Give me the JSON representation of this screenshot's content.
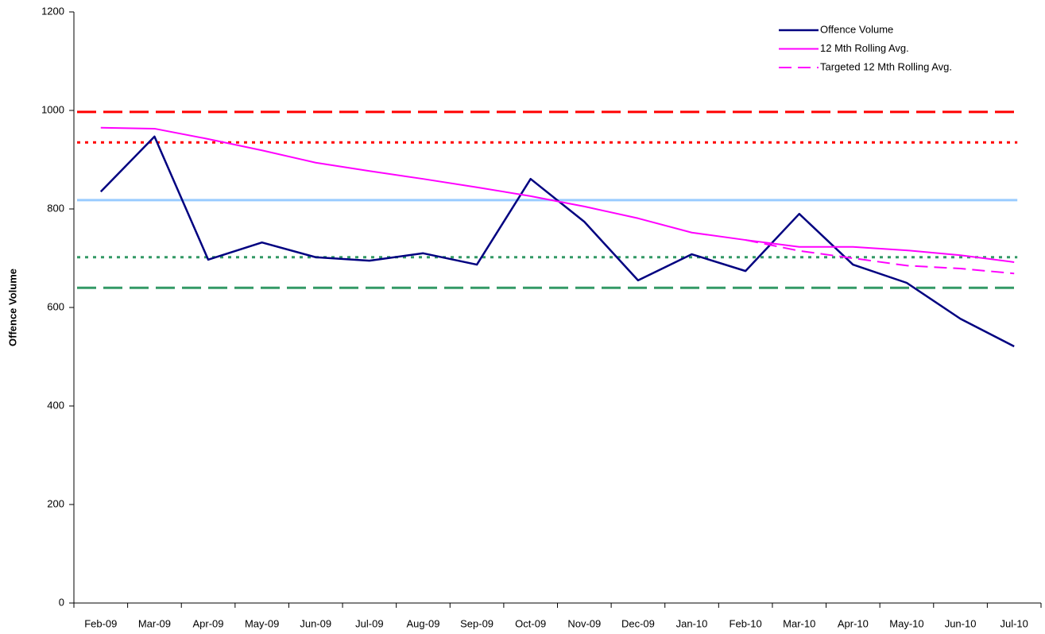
{
  "chart_data": {
    "type": "line",
    "y_label": "Offence Volume",
    "categories": [
      "Feb-09",
      "Mar-09",
      "Apr-09",
      "May-09",
      "Jun-09",
      "Jul-09",
      "Aug-09",
      "Sep-09",
      "Oct-09",
      "Nov-09",
      "Dec-09",
      "Jan-10",
      "Feb-10",
      "Mar-10",
      "Apr-10",
      "May-10",
      "Jun-10",
      "Jul-10"
    ],
    "series": [
      {
        "name": "Offence Volume",
        "color": "#000080",
        "style": "solid",
        "values": [
          835,
          947,
          697,
          732,
          702,
          695,
          710,
          687,
          861,
          774,
          655,
          708,
          674,
          790,
          687,
          650,
          577,
          521
        ]
      },
      {
        "name": "12 Mth Rolling Avg.",
        "color": "#ff00ff",
        "style": "solid",
        "values": [
          965,
          963,
          942,
          919,
          894,
          877,
          861,
          844,
          826,
          805,
          781,
          752,
          737,
          723,
          723,
          716,
          706,
          692
        ]
      },
      {
        "name": "Targeted 12 Mth Rolling Avg.",
        "color": "#ff00ff",
        "style": "dashed",
        "values": [
          null,
          null,
          null,
          null,
          null,
          null,
          null,
          null,
          null,
          null,
          null,
          null,
          737,
          715,
          700,
          685,
          679,
          669
        ]
      }
    ],
    "reference_lines": [
      {
        "value": 997,
        "color": "#ff0000",
        "style": "dashed"
      },
      {
        "value": 935,
        "color": "#ff0000",
        "style": "dotted"
      },
      {
        "value": 818,
        "color": "#99ccff",
        "style": "solid"
      },
      {
        "value": 702,
        "color": "#339966",
        "style": "dotted"
      },
      {
        "value": 640,
        "color": "#339966",
        "style": "dashed"
      }
    ],
    "ylim": [
      0,
      1200
    ],
    "yticks": [
      0,
      200,
      400,
      600,
      800,
      1000,
      1200
    ],
    "legend": "top-right"
  }
}
